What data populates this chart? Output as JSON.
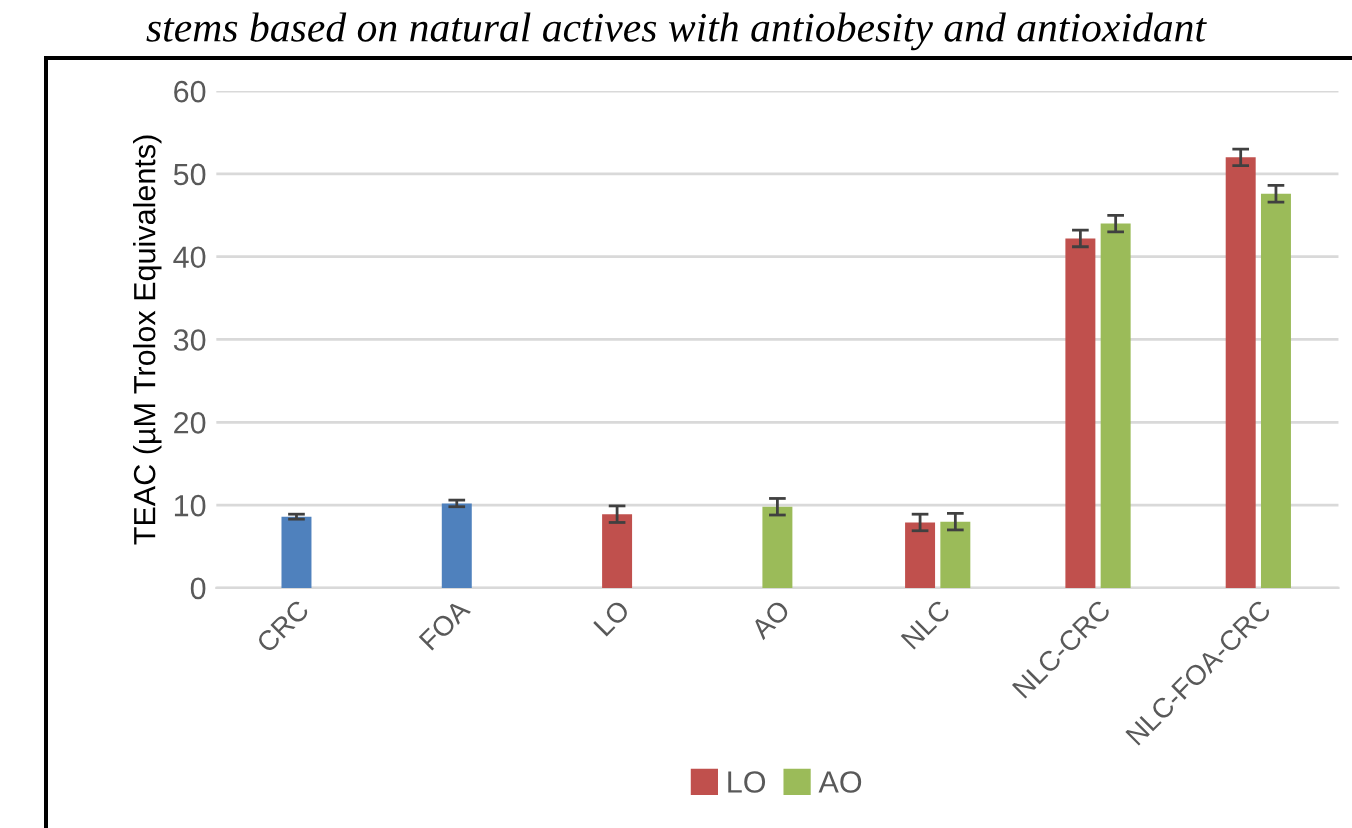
{
  "chart_data": {
    "type": "bar",
    "annotations": [
      "stems based on natural actives with antiobesity and antioxidant"
    ],
    "ylabel": "TEAC (µM Trolox Equivalents)",
    "categories": [
      "CRC",
      "FOA",
      "LO",
      "AO",
      "NLC",
      "NLC-CRC",
      "NLC-FOA-CRC"
    ],
    "series": [
      {
        "color": "#4f81bd",
        "values": [
          8.6,
          10.2,
          null,
          null,
          null,
          null,
          null
        ],
        "errors": [
          0.3,
          0.4,
          null,
          null,
          null,
          null,
          null
        ]
      },
      {
        "name": "LO",
        "color": "#c0504d",
        "values": [
          null,
          null,
          8.9,
          null,
          7.9,
          42.2,
          52.0
        ],
        "errors": [
          null,
          null,
          1.0,
          null,
          1.0,
          1.0,
          1.0
        ]
      },
      {
        "name": "AO",
        "color": "#9bbb59",
        "values": [
          null,
          null,
          null,
          9.8,
          8.0,
          44.0,
          47.6
        ],
        "errors": [
          null,
          null,
          null,
          1.0,
          1.0,
          1.0,
          1.0
        ]
      }
    ],
    "ylim": [
      0,
      60
    ],
    "yticks": [
      0,
      10,
      20,
      30,
      40,
      50,
      60
    ],
    "grid": "y",
    "legend": "bottom"
  }
}
